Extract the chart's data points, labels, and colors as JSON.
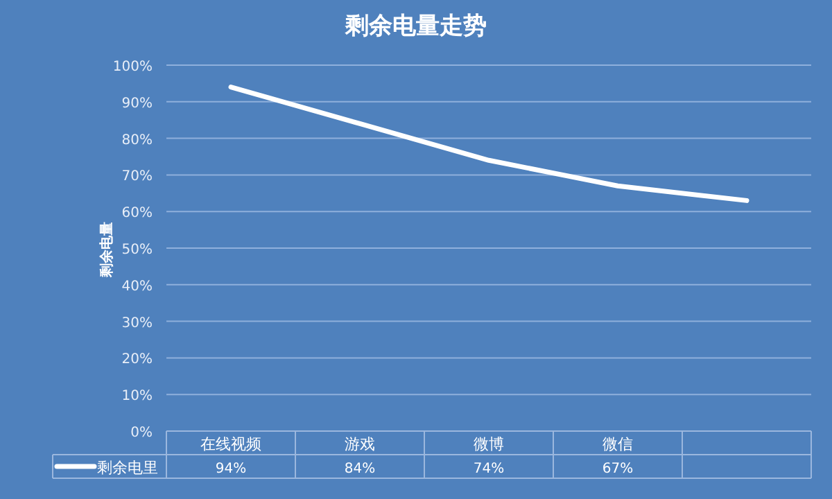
{
  "chart_data": {
    "type": "line",
    "title": "剩余电量走势",
    "ylabel": "剩余电量",
    "categories": [
      "在线视频",
      "游戏",
      "微博",
      "微信",
      null
    ],
    "series": [
      {
        "name": "剩余电里",
        "color": "#ffffff",
        "values": [
          94,
          84,
          74,
          67,
          63
        ],
        "value_labels": [
          "94%",
          "84%",
          "74%",
          "67%",
          null
        ]
      }
    ],
    "ylim": [
      0,
      100
    ],
    "yticks": [
      {
        "value": 0,
        "label": "0%"
      },
      {
        "value": 10,
        "label": "10%"
      },
      {
        "value": 20,
        "label": "20%"
      },
      {
        "value": 30,
        "label": "30%"
      },
      {
        "value": 40,
        "label": "40%"
      },
      {
        "value": 50,
        "label": "50%"
      },
      {
        "value": 60,
        "label": "60%"
      },
      {
        "value": 70,
        "label": "70%"
      },
      {
        "value": 80,
        "label": "80%"
      },
      {
        "value": 90,
        "label": "90%"
      },
      {
        "value": 100,
        "label": "100%"
      }
    ],
    "grid": "y",
    "marker": "none",
    "line_style": "solid",
    "legend": "bottom"
  }
}
